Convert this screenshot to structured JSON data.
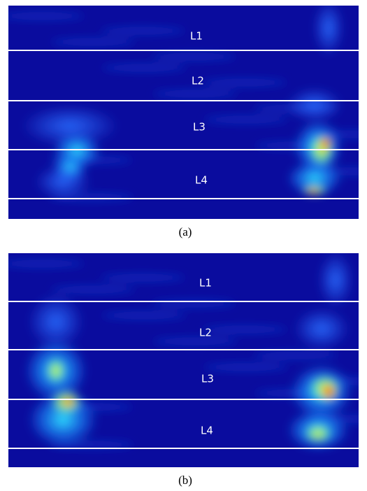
{
  "panels": [
    {
      "caption": "(a)",
      "labels": [
        "L1",
        "L2",
        "L3",
        "L4"
      ]
    },
    {
      "caption": "(b)",
      "labels": [
        "L1",
        "L2",
        "L3",
        "L4"
      ]
    }
  ]
}
